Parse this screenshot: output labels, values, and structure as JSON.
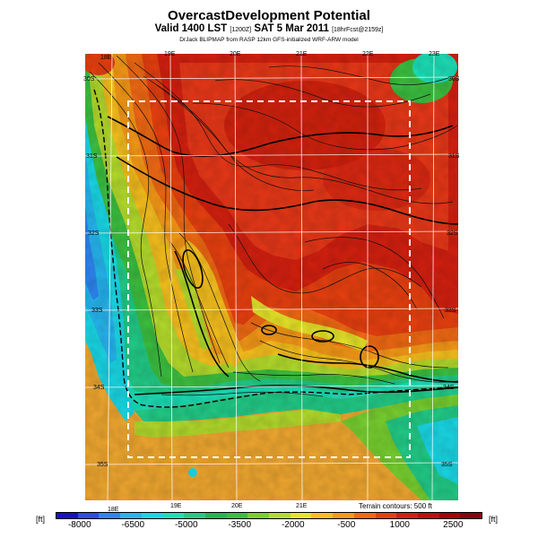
{
  "title": "OvercastDevelopment Potential",
  "subtitle": {
    "valid_prefix": "Valid 1400 LST",
    "code": "[1200Z]",
    "date": "SAT 5 Mar 2011",
    "forecast_tag": "[18hrFcst@2159z]"
  },
  "attribution": "DrJack BLIPMAP from RASP 12km GFS-initialized WRF-ARW model",
  "longitude_labels_top": [
    "18E",
    "19E",
    "20E",
    "21E",
    "22E",
    "23E"
  ],
  "longitude_labels_bottom": [
    "18E",
    "19E",
    "20E",
    "21E"
  ],
  "latitude_labels_right": [
    "30S",
    "31S",
    "32S",
    "33S",
    "34S",
    "35S"
  ],
  "latitude_labels_left": [
    "30S",
    "31S",
    "32S",
    "33S",
    "34S",
    "35S"
  ],
  "terrain_note": "Terrain contours: 500 ft",
  "colorbar": {
    "unit_left": "[ft]",
    "unit_right": "[ft]",
    "tick_labels": [
      "-8000",
      "-6500",
      "-5000",
      "-3500",
      "-2000",
      "-500",
      "1000",
      "2500"
    ],
    "colors": [
      "#1a10c8",
      "#2a4ee8",
      "#2f86f2",
      "#26b6f0",
      "#1ad8e6",
      "#1de0b8",
      "#22cc88",
      "#27b558",
      "#3cc040",
      "#78d030",
      "#b4dc2c",
      "#e6e428",
      "#f7c01e",
      "#f79a18",
      "#f26a14",
      "#e84010",
      "#d42010",
      "#c01008",
      "#a8000c",
      "#8c0012"
    ]
  },
  "map": {
    "projection": "lat-lon grid",
    "field": "overcast development potential",
    "units": "ft",
    "ocean_color": "#f0a830",
    "land_high_color": "#e83818",
    "coast_transition_colors": [
      "#1ad8e6",
      "#27b558",
      "#e6e428"
    ]
  }
}
